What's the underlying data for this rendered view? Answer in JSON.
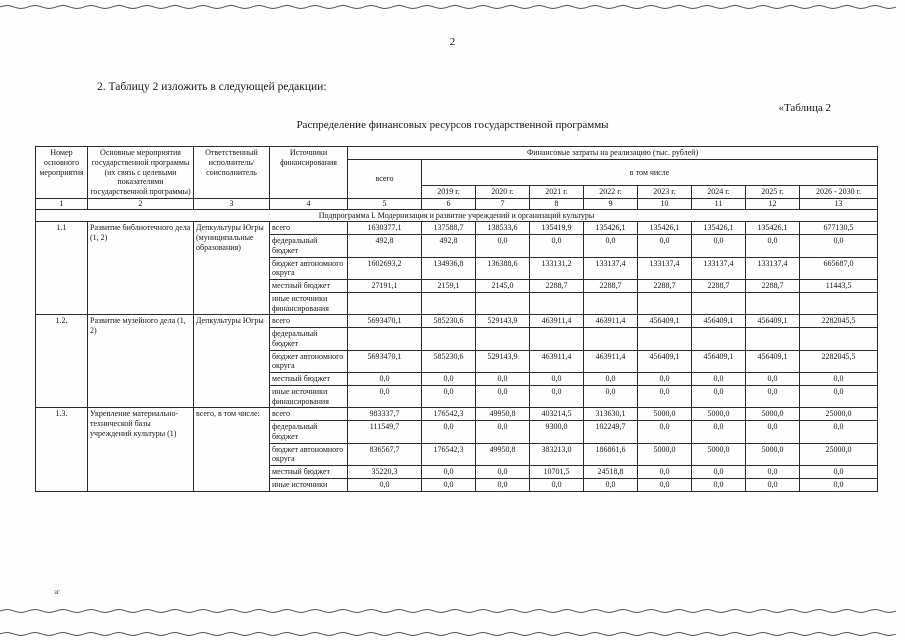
{
  "page": {
    "number": "2",
    "intro": "2. Таблицу 2 изложить в следующей редакции:",
    "table_ref": "«Таблица 2",
    "title": "Распределение финансовых ресурсов государственной программы",
    "footer_mark": "зг"
  },
  "table": {
    "headers": {
      "col1": "Номер основного мероприятия",
      "col2": "Основные мероприятия государственной программы (их связь с целевыми показателями государственной программы)",
      "col3": "Ответственный исполнитель/ соисполнитель",
      "col4": "Источники финансирования",
      "finance": "Финансовые затраты на реализацию (тыс. рублей)",
      "total": "всего",
      "including": "в том числе",
      "years": [
        "2019 г.",
        "2020 г.",
        "2021 г.",
        "2022 г.",
        "2023 г.",
        "2024 г.",
        "2025 г.",
        "2026 - 2030 г."
      ],
      "col_numbers": [
        "1",
        "2",
        "3",
        "4",
        "5",
        "6",
        "7",
        "8",
        "9",
        "10",
        "11",
        "12",
        "13"
      ]
    },
    "subprogram": "Подпрограмма I. Модернизация и развитие учреждений и организаций культуры",
    "rows": [
      {
        "num": "1.1",
        "activity": "Развитие библиотечного дела (1, 2)",
        "executor": "Депкультуры Югры (муниципальные образования)",
        "lines": [
          {
            "source": "всего",
            "values": [
              "1630377,1",
              "137588,7",
              "138533,6",
              "135419,9",
              "135426,1",
              "135426,1",
              "135426,1",
              "135426,1",
              "677130,5"
            ]
          },
          {
            "source": "федеральный бюджет",
            "values": [
              "492,8",
              "492,8",
              "0,0",
              "0,0",
              "0,0",
              "0,0",
              "0,0",
              "0,0",
              "0,0"
            ]
          },
          {
            "source": "бюджет автономного округа",
            "values": [
              "1602693,2",
              "134936,8",
              "136388,6",
              "133131,2",
              "133137,4",
              "133137,4",
              "133137,4",
              "133137,4",
              "665687,0"
            ]
          },
          {
            "source": "местный бюджет",
            "values": [
              "27191,1",
              "2159,1",
              "2145,0",
              "2288,7",
              "2288,7",
              "2288,7",
              "2288,7",
              "2288,7",
              "11443,5"
            ]
          },
          {
            "source": "иные источники финансирования",
            "values": [
              "",
              "",
              "",
              "",
              "",
              "",
              "",
              "",
              ""
            ]
          }
        ]
      },
      {
        "num": "1.2.",
        "activity": "Развитие музейного дела (1, 2)",
        "executor": "Депкультуры Югры",
        "lines": [
          {
            "source": "всего",
            "values": [
              "5693470,1",
              "585230,6",
              "529143,9",
              "463911,4",
              "463911,4",
              "456409,1",
              "456409,1",
              "456409,1",
              "2282045,5"
            ]
          },
          {
            "source": "федеральный бюджет",
            "values": [
              "",
              "",
              "",
              "",
              "",
              "",
              "",
              "",
              ""
            ]
          },
          {
            "source": "бюджет автономного округа",
            "values": [
              "5693470,1",
              "585230,6",
              "529143,9",
              "463911,4",
              "463911,4",
              "456409,1",
              "456409,1",
              "456409,1",
              "2282045,5"
            ]
          },
          {
            "source": "местный бюджет",
            "values": [
              "0,0",
              "0,0",
              "0,0",
              "0,0",
              "0,0",
              "0,0",
              "0,0",
              "0,0",
              "0,0"
            ]
          },
          {
            "source": "иные источники финансирования",
            "values": [
              "0,0",
              "0,0",
              "0,0",
              "0,0",
              "0,0",
              "0,0",
              "0,0",
              "0,0",
              "0,0"
            ]
          }
        ]
      },
      {
        "num": "1.3.",
        "activity": "Укрепление материально-технической базы учреждений культуры (1)",
        "executor": "всего, в том числе:",
        "lines": [
          {
            "source": "всего",
            "values": [
              "983337,7",
              "176542,3",
              "49950,8",
              "403214,5",
              "313630,1",
              "5000,0",
              "5000,0",
              "5000,0",
              "25000,0"
            ]
          },
          {
            "source": "федеральный бюджет",
            "values": [
              "111549,7",
              "0,0",
              "0,0",
              "9300,0",
              "102249,7",
              "0,0",
              "0,0",
              "0,0",
              "0,0"
            ]
          },
          {
            "source": "бюджет автономного округа",
            "values": [
              "836567,7",
              "176542,3",
              "49950,8",
              "383213,0",
              "186861,6",
              "5000,0",
              "5000,0",
              "5000,0",
              "25000,0"
            ]
          },
          {
            "source": "местный бюджет",
            "values": [
              "35220,3",
              "0,0",
              "0,0",
              "10701,5",
              "24518,8",
              "0,0",
              "0,0",
              "0,0",
              "0,0"
            ]
          },
          {
            "source": "иные источники",
            "values": [
              "0,0",
              "0,0",
              "0,0",
              "0,0",
              "0,0",
              "0,0",
              "0,0",
              "0,0",
              "0,0"
            ]
          }
        ]
      }
    ]
  }
}
